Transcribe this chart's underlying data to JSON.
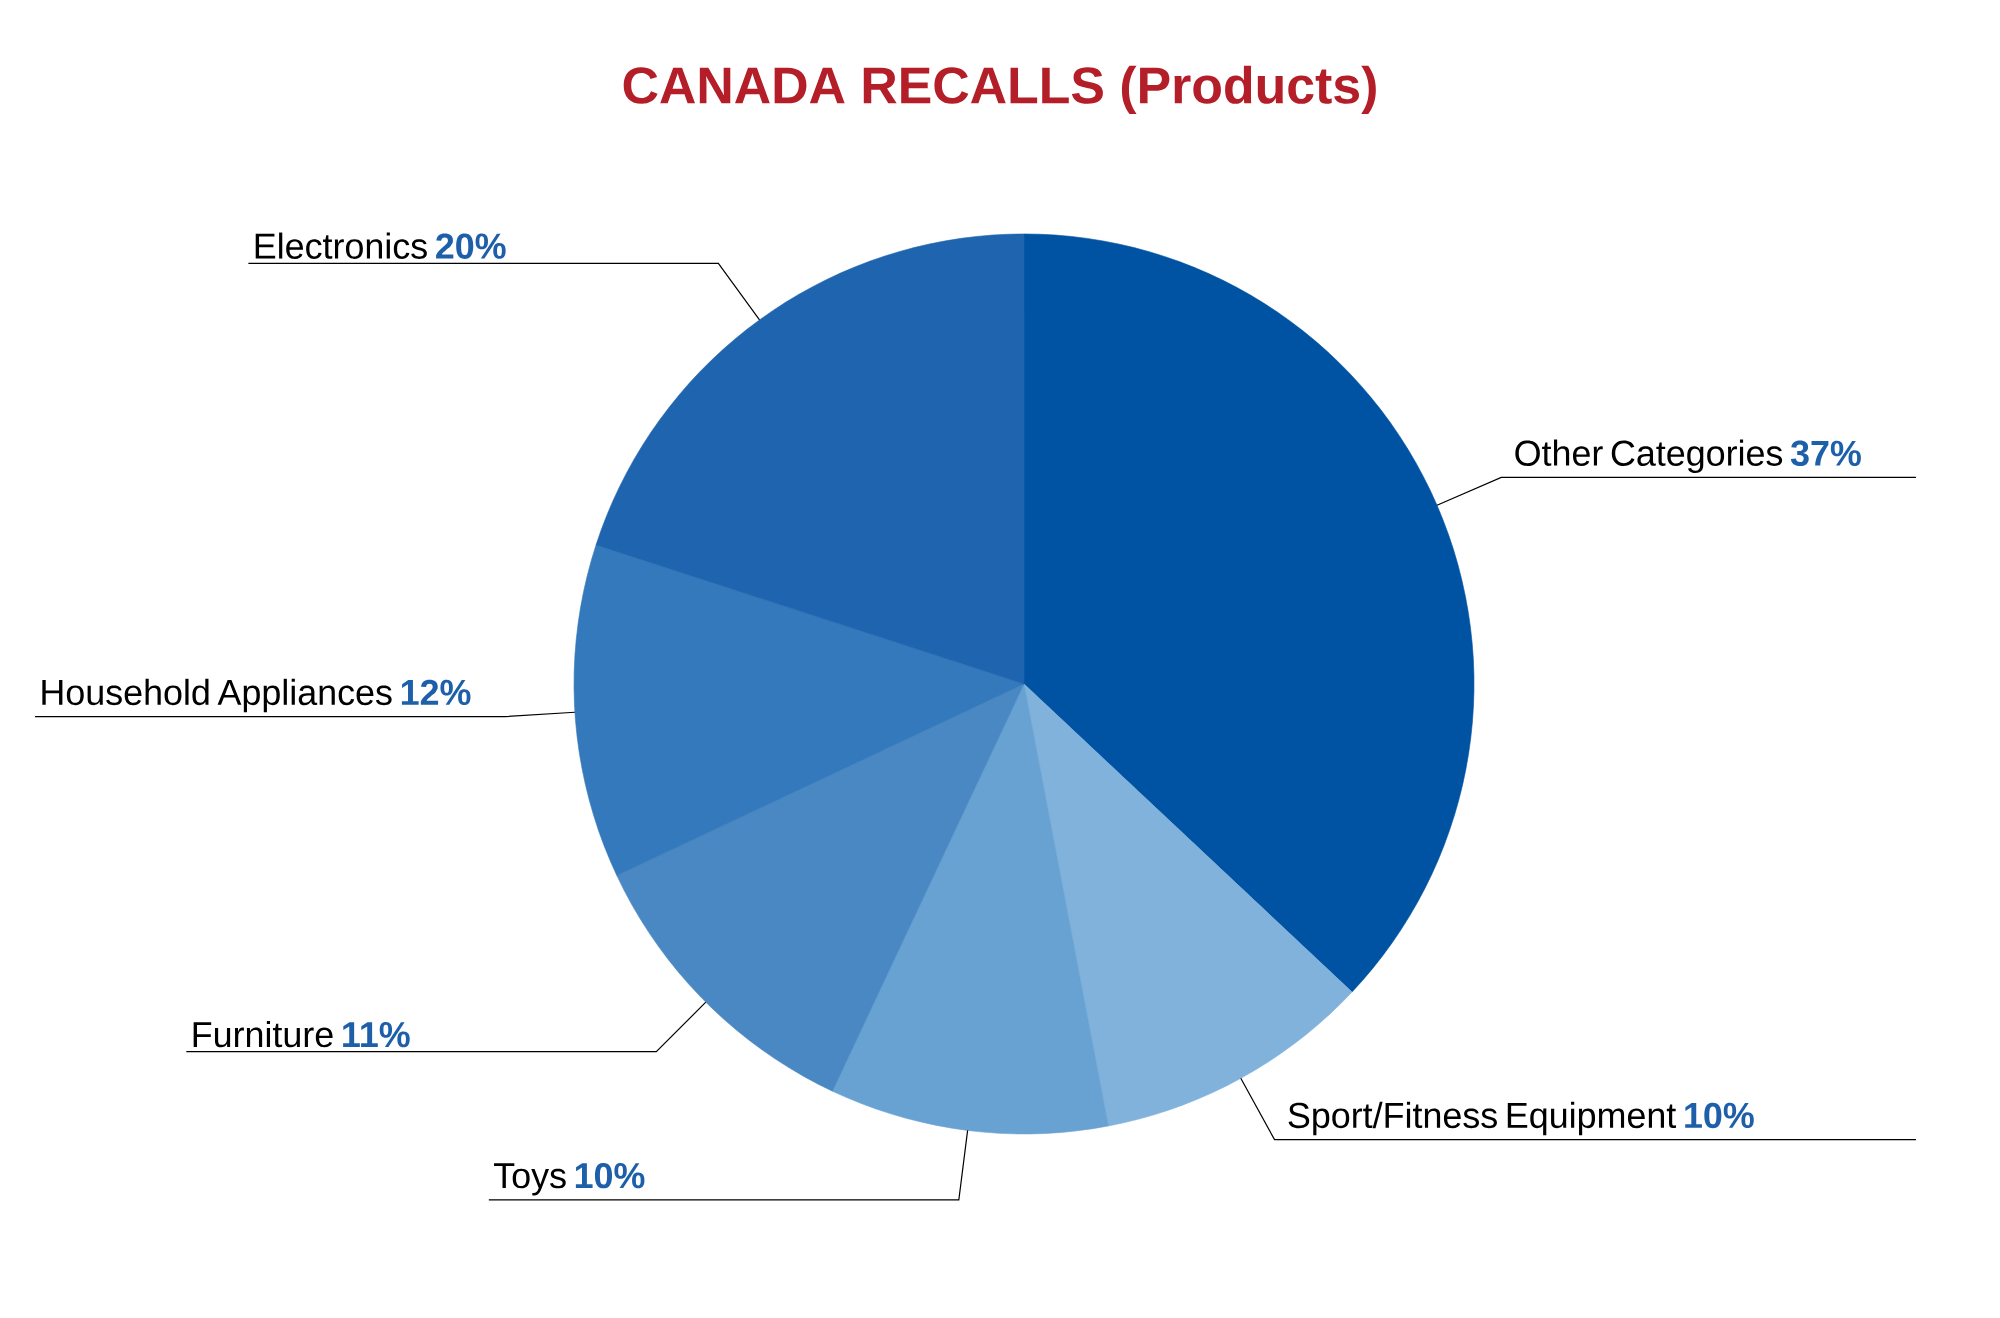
{
  "chart_data": {
    "type": "pie",
    "title": "CANADA RECALLS (Products)",
    "categories": [
      "Other Categories",
      "Sport/Fitness Equipment",
      "Toys",
      "Furniture",
      "Household Appliances",
      "Electronics"
    ],
    "values": [
      37,
      10,
      10,
      11,
      12,
      20
    ],
    "value_labels": [
      "37%",
      "10%",
      "10%",
      "11%",
      "12%",
      "20%"
    ],
    "colors": [
      "#0052a2",
      "#80b2db",
      "#68a2d2",
      "#4a88c4",
      "#3479bb",
      "#1e64ae"
    ]
  }
}
